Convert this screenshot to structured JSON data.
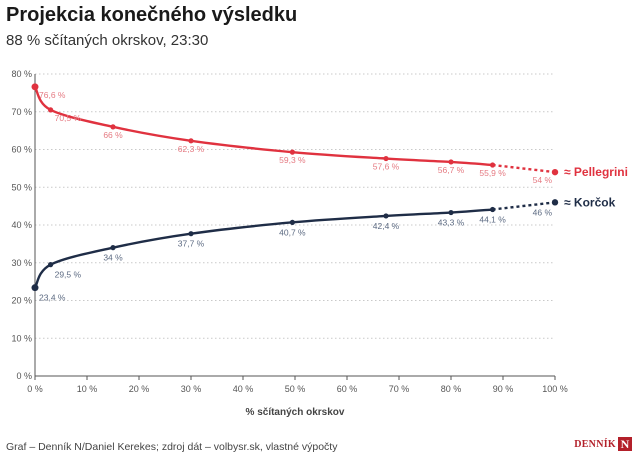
{
  "header": {
    "title": "Projekcia konečného výsledku",
    "subtitle": "88 % sčítaných okrskov, 23:30"
  },
  "footer": {
    "source": "Graf – Denník N/Daniel Kerekes; zdroj dát – volbysr.sk, vlastné výpočty",
    "logo_text": "DENNÍK",
    "logo_mark": "N"
  },
  "chart_data": {
    "type": "line",
    "xlabel": "% sčítaných okrskov",
    "ylabel": "",
    "xlim": [
      0,
      100
    ],
    "ylim": [
      0,
      80
    ],
    "x_ticks": [
      0,
      10,
      20,
      30,
      40,
      50,
      60,
      70,
      80,
      90,
      100
    ],
    "x_tick_labels": [
      "0 %",
      "10 %",
      "20 %",
      "30 %",
      "40 %",
      "50 %",
      "60 %",
      "70 %",
      "80 %",
      "90 %",
      "100 %"
    ],
    "y_ticks": [
      0,
      10,
      20,
      30,
      40,
      50,
      60,
      70,
      80
    ],
    "y_tick_labels": [
      "0 %",
      "10 %",
      "20 %",
      "30 %",
      "40 %",
      "50 %",
      "60 %",
      "70 %",
      "80 %"
    ],
    "grid": "horizontal dotted",
    "series": [
      {
        "name": "≈ Pellegrini",
        "color": "#e0323f",
        "label_color": "#e57a82",
        "points": [
          {
            "x": 0,
            "y": 76.6,
            "label": "76,6 %"
          },
          {
            "x": 3,
            "y": 70.5,
            "label": "70,5 %"
          },
          {
            "x": 15,
            "y": 66,
            "label": "66 %"
          },
          {
            "x": 30,
            "y": 62.3,
            "label": "62,3 %"
          },
          {
            "x": 49.5,
            "y": 59.3,
            "label": "59,3 %"
          },
          {
            "x": 67.5,
            "y": 57.6,
            "label": "57,6 %"
          },
          {
            "x": 80,
            "y": 56.7,
            "label": "56,7 %"
          },
          {
            "x": 88,
            "y": 55.9,
            "label": "55,9 %"
          }
        ],
        "projection": {
          "x": 100,
          "y": 54,
          "label": "54 %"
        }
      },
      {
        "name": "≈ Korčok",
        "color": "#1f2d47",
        "label_color": "#5c6a82",
        "points": [
          {
            "x": 0,
            "y": 23.4,
            "label": "23,4 %"
          },
          {
            "x": 3,
            "y": 29.5,
            "label": "29,5 %"
          },
          {
            "x": 15,
            "y": 34,
            "label": "34 %"
          },
          {
            "x": 30,
            "y": 37.7,
            "label": "37,7 %"
          },
          {
            "x": 49.5,
            "y": 40.7,
            "label": "40,7 %"
          },
          {
            "x": 67.5,
            "y": 42.4,
            "label": "42,4 %"
          },
          {
            "x": 80,
            "y": 43.3,
            "label": "43,3 %"
          },
          {
            "x": 88,
            "y": 44.1,
            "label": "44,1 %"
          }
        ],
        "projection": {
          "x": 100,
          "y": 46,
          "label": "46 %"
        }
      }
    ]
  }
}
